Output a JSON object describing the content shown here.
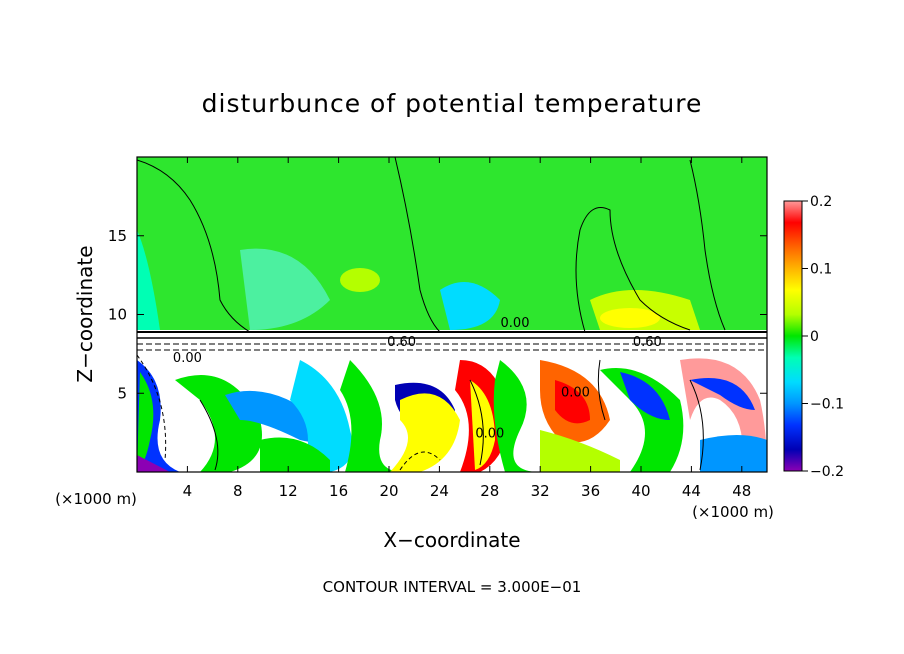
{
  "chart_data": {
    "type": "heatmap",
    "title": "disturbunce of potential temperature",
    "xlabel": "X−coordinate",
    "ylabel": "Z−coordinate",
    "x_unit_left": "(×1000 m)",
    "x_unit_right": "(×1000 m)",
    "footer": "CONTOUR INTERVAL = 3.000E−01",
    "xlim": [
      0,
      50
    ],
    "ylim": [
      0,
      20
    ],
    "x_ticks": [
      4,
      8,
      12,
      16,
      20,
      24,
      28,
      32,
      36,
      40,
      44,
      48
    ],
    "x_tick_labels": [
      "4",
      "8",
      "12",
      "16",
      "20",
      "24",
      "28",
      "32",
      "36",
      "40",
      "44",
      "48"
    ],
    "y_ticks": [
      5,
      10,
      15
    ],
    "y_tick_labels": [
      "5",
      "10",
      "15"
    ],
    "colorbar": {
      "range": [
        -0.2,
        0.2
      ],
      "tick_values": [
        0.2,
        0.1,
        0,
        -0.1,
        -0.2
      ],
      "tick_labels": [
        "0.2",
        "0.1",
        "0",
        "−0.1",
        "−0.2"
      ],
      "colors": [
        "#ff9a9a",
        "#ff0000",
        "#ff6400",
        "#ffb400",
        "#ffff00",
        "#b4ff00",
        "#00e600",
        "#00ffb4",
        "#00dcff",
        "#0096ff",
        "#0032ff",
        "#0000b4",
        "#8c00b4"
      ]
    },
    "contour_labels": [
      {
        "text": "0.00",
        "x": 4.0,
        "y": 7.0
      },
      {
        "text": "0.00",
        "x": 30.0,
        "y": 9.2
      },
      {
        "text": "0.00",
        "x": 28.0,
        "y": 2.2
      },
      {
        "text": "0.00",
        "x": 34.8,
        "y": 4.8
      },
      {
        "text": "0.60",
        "x": 21.0,
        "y": 8.0
      },
      {
        "text": "0.60",
        "x": 40.5,
        "y": 8.0
      }
    ]
  }
}
